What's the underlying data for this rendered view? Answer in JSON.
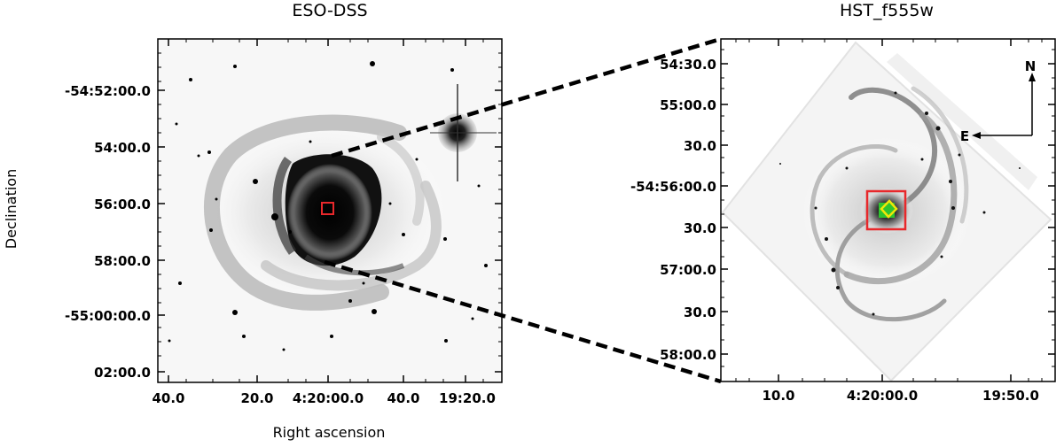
{
  "left_panel": {
    "title": "ESO-DSS",
    "ylabel": "Declination",
    "xlabel": "Right ascension",
    "yticks": [
      "-54:52:00.0",
      "54:00.0",
      "56:00.0",
      "58:00.0",
      "-55:00:00.0",
      "02:00.0"
    ],
    "xticks": [
      "40.0",
      "20.0",
      "4:20:00.0",
      "40.0",
      "19:20.0"
    ],
    "box_color": "#e8282b"
  },
  "right_panel": {
    "title": "HST_f555w",
    "yticks": [
      "54:30.0",
      "55:00.0",
      "30.0",
      "-54:56:00.0",
      "30.0",
      "57:00.0",
      "30.0",
      "58:00.0"
    ],
    "xticks": [
      "10.0",
      "4:20:00.0",
      "19:50.0"
    ],
    "compass_north": "N",
    "compass_east": "E",
    "box_color": "#e8282b",
    "green_marker_color": "#2fc42f",
    "yellow_marker_color": "#f0e60a"
  }
}
